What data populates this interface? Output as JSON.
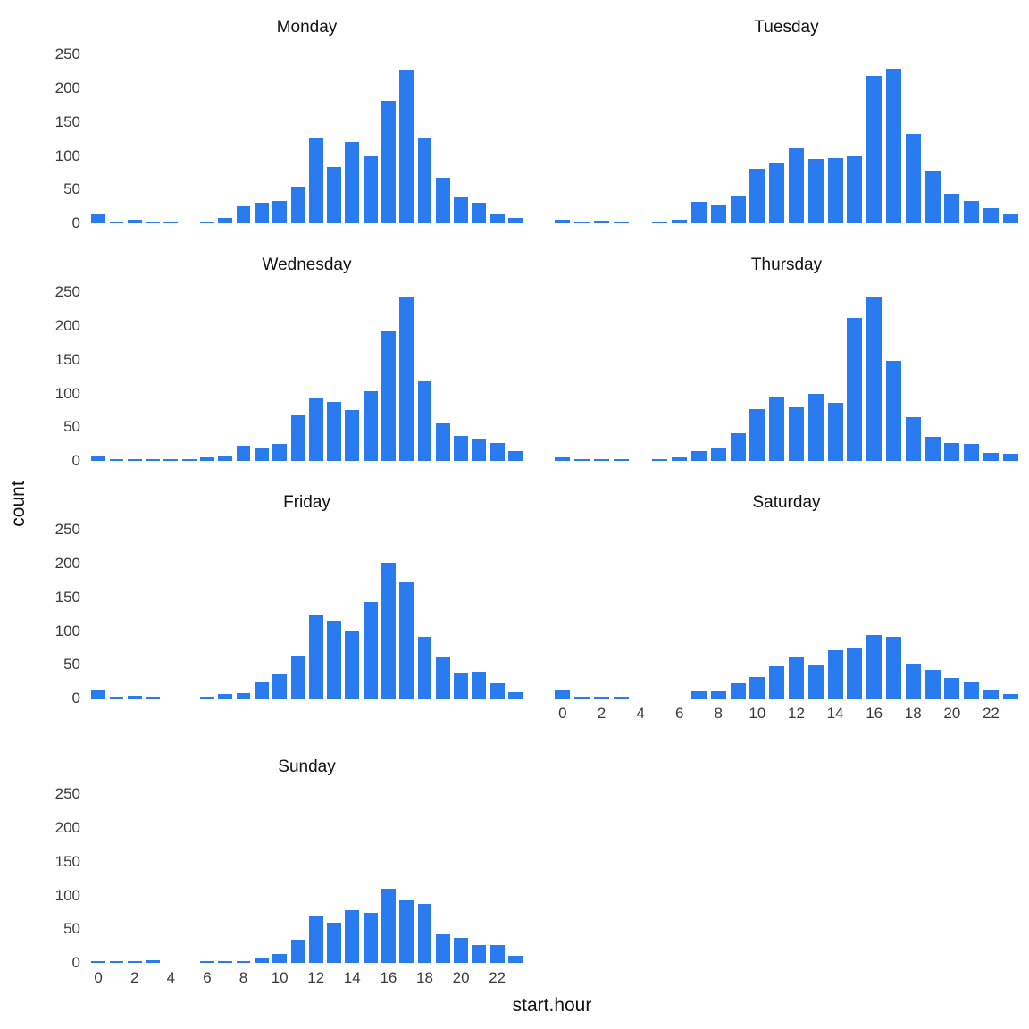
{
  "chart_data": {
    "type": "bar",
    "title": "",
    "xlabel": "start.hour",
    "ylabel": "count",
    "bar_color": "#2b7bf0",
    "hours": [
      0,
      1,
      2,
      3,
      4,
      5,
      6,
      7,
      8,
      9,
      10,
      11,
      12,
      13,
      14,
      15,
      16,
      17,
      18,
      19,
      20,
      21,
      22,
      23
    ],
    "x_ticks": [
      0,
      2,
      4,
      6,
      8,
      10,
      12,
      14,
      16,
      18,
      20,
      22
    ],
    "y_ticks": [
      0,
      50,
      100,
      150,
      200,
      250
    ],
    "ylim": [
      0,
      265
    ],
    "grid": false,
    "legend": "none",
    "facet_layout": {
      "columns": 2,
      "order": [
        "Monday",
        "Tuesday",
        "Wednesday",
        "Thursday",
        "Friday",
        "Saturday",
        "Sunday"
      ]
    },
    "facets": [
      {
        "label": "Monday",
        "values": [
          13,
          2,
          5,
          3,
          1,
          0,
          2,
          8,
          25,
          30,
          33,
          55,
          126,
          83,
          121,
          100,
          181,
          228,
          127,
          68,
          40,
          31,
          13,
          8
        ]
      },
      {
        "label": "Tuesday",
        "values": [
          5,
          3,
          4,
          1,
          0,
          3,
          5,
          32,
          27,
          41,
          81,
          89,
          111,
          95,
          97,
          100,
          219,
          229,
          132,
          78,
          44,
          33,
          23,
          13
        ]
      },
      {
        "label": "Wednesday",
        "values": [
          8,
          3,
          3,
          2,
          1,
          1,
          5,
          6,
          22,
          20,
          25,
          68,
          93,
          87,
          76,
          104,
          192,
          242,
          118,
          56,
          37,
          33,
          27,
          14
        ]
      },
      {
        "label": "Thursday",
        "values": [
          5,
          3,
          2,
          1,
          0,
          2,
          5,
          14,
          19,
          41,
          77,
          96,
          79,
          99,
          86,
          212,
          244,
          149,
          65,
          36,
          27,
          25,
          12,
          11
        ]
      },
      {
        "label": "Friday",
        "values": [
          13,
          2,
          4,
          1,
          0,
          0,
          2,
          6,
          8,
          25,
          36,
          63,
          124,
          115,
          101,
          143,
          201,
          172,
          92,
          62,
          38,
          40,
          23,
          9
        ]
      },
      {
        "label": "Saturday",
        "values": [
          13,
          1,
          2,
          2,
          0,
          0,
          0,
          10,
          10,
          22,
          32,
          48,
          61,
          50,
          71,
          74,
          94,
          91,
          52,
          43,
          31,
          24,
          13,
          6
        ]
      },
      {
        "label": "Sunday",
        "values": [
          3,
          2,
          3,
          4,
          0,
          0,
          1,
          2,
          2,
          6,
          13,
          34,
          69,
          59,
          78,
          74,
          110,
          93,
          87,
          43,
          37,
          26,
          26,
          10
        ]
      }
    ]
  }
}
